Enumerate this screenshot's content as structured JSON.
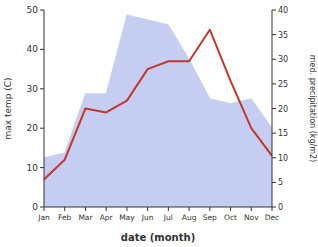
{
  "chart_data": {
    "type": "line",
    "xlabel": "date (month)",
    "ylabel": "max temp (C)",
    "y2label": "med. precipitation (kg/m2)",
    "categories": [
      "Jan",
      "Feb",
      "Mar",
      "Apr",
      "May",
      "Jun",
      "Jul",
      "Aug",
      "Sep",
      "Oct",
      "Nov",
      "Dec"
    ],
    "series": [
      {
        "type": "area",
        "axis": "y2",
        "color": "#c5cef2",
        "values": [
          10,
          11,
          23,
          23,
          39,
          38,
          37,
          30,
          22,
          21,
          22,
          16
        ]
      },
      {
        "type": "line",
        "color": "#c0392b",
        "values": [
          7,
          12,
          25,
          24,
          27,
          35,
          37,
          37,
          45,
          32,
          20,
          13
        ]
      }
    ],
    "ylim": [
      0,
      50
    ],
    "yticks": [
      0,
      10,
      20,
      30,
      40,
      50
    ],
    "y2lim": [
      0,
      40
    ],
    "y2ticks": [
      0,
      5,
      10,
      15,
      20,
      25,
      30,
      35,
      40
    ],
    "grid": false
  }
}
